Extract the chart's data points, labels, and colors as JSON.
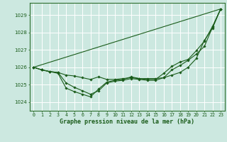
{
  "background_color": "#cce8e0",
  "grid_color": "#b0d8d0",
  "line_color": "#1a5c1a",
  "marker_color": "#1a5c1a",
  "title": "Graphe pression niveau de la mer (hPa)",
  "xlim": [
    -0.5,
    23.5
  ],
  "ylim": [
    1023.5,
    1029.7
  ],
  "yticks": [
    1024,
    1025,
    1026,
    1027,
    1028,
    1029
  ],
  "xticks": [
    0,
    1,
    2,
    3,
    4,
    5,
    6,
    7,
    8,
    9,
    10,
    11,
    12,
    13,
    14,
    15,
    16,
    17,
    18,
    19,
    20,
    21,
    22,
    23
  ],
  "series": [
    [
      1026.0,
      1025.85,
      1025.75,
      1025.7,
      1025.55,
      1025.5,
      1025.4,
      1025.3,
      1025.45,
      1025.3,
      1025.3,
      1025.35,
      1025.4,
      1025.35,
      1025.35,
      1025.35,
      1025.4,
      1025.55,
      1025.7,
      1026.0,
      1026.5,
      1027.55,
      1028.25,
      1029.35
    ],
    [
      1026.0,
      1025.85,
      1025.75,
      1025.7,
      1025.1,
      1024.85,
      1024.65,
      1024.45,
      1024.65,
      1025.1,
      1025.2,
      1025.25,
      1025.35,
      1025.3,
      1025.25,
      1025.25,
      1025.4,
      1025.85,
      1026.1,
      1026.4,
      1026.75,
      1027.2,
      1028.3,
      1029.35
    ],
    [
      1026.0,
      1025.85,
      1025.75,
      1025.65,
      1024.8,
      1024.6,
      1024.45,
      1024.3,
      1024.75,
      1025.15,
      1025.25,
      1025.3,
      1025.45,
      1025.35,
      1025.3,
      1025.3,
      1025.65,
      1026.05,
      1026.3,
      1026.45,
      1026.95,
      1027.5,
      1028.35,
      1029.35
    ]
  ],
  "line1": [
    1026.0,
    1029.35
  ],
  "line1_x": [
    0,
    23
  ]
}
